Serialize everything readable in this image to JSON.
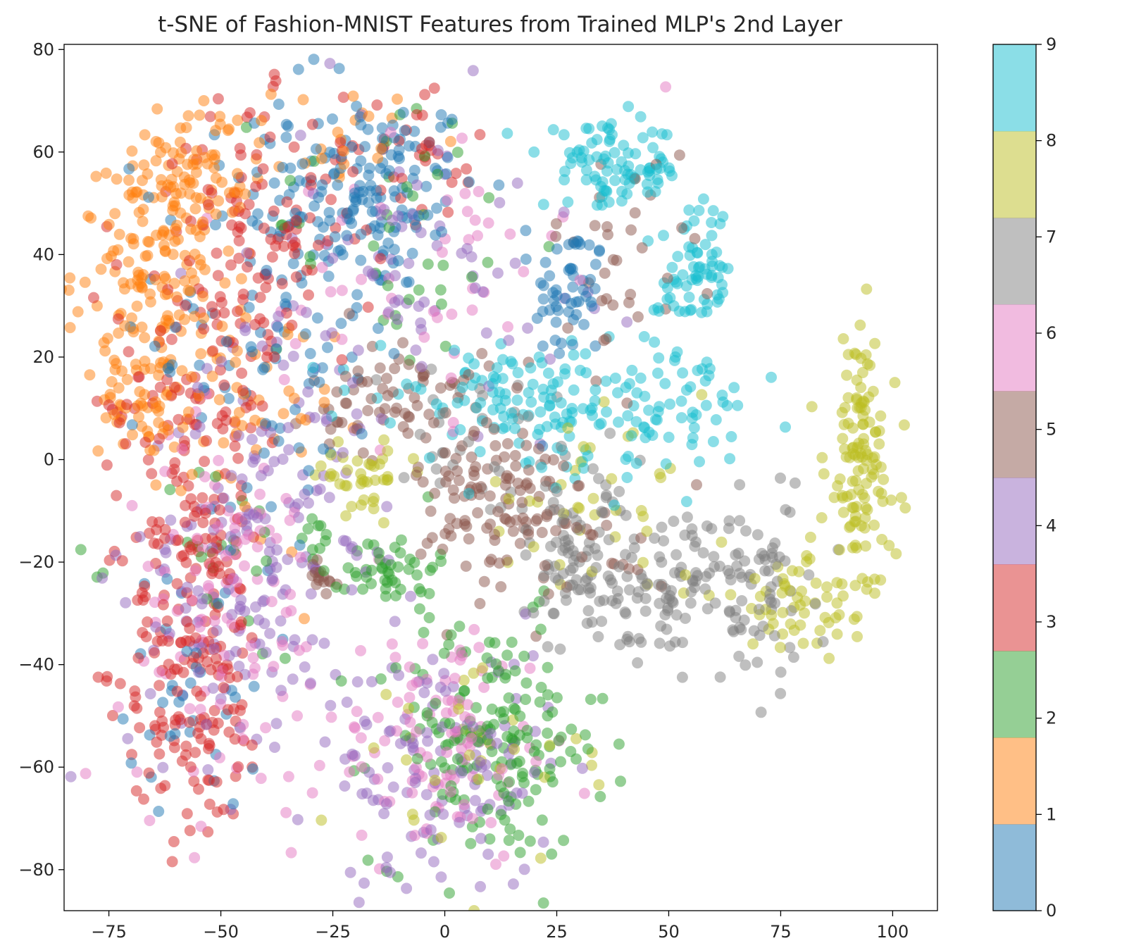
{
  "chart_data": {
    "type": "scatter",
    "title": "t-SNE of Fashion-MNIST Features from Trained MLP's 2nd Layer",
    "xlabel": "",
    "ylabel": "",
    "xlim": [
      -85,
      110
    ],
    "ylim": [
      -88,
      81
    ],
    "x_ticks": [
      -75,
      -50,
      -25,
      0,
      25,
      50,
      75,
      100
    ],
    "y_ticks": [
      -80,
      -60,
      -40,
      -20,
      0,
      20,
      40,
      60,
      80
    ],
    "x_tick_labels": [
      "−75",
      "−50",
      "−25",
      "0",
      "25",
      "50",
      "75",
      "100"
    ],
    "y_tick_labels": [
      "−80",
      "−60",
      "−40",
      "−20",
      "0",
      "20",
      "40",
      "60",
      "80"
    ],
    "grid": false,
    "marker_alpha": 0.5,
    "colormap": "tab10",
    "colorbar": {
      "min": 0,
      "max": 9,
      "ticks": [
        0,
        1,
        2,
        3,
        4,
        5,
        6,
        7,
        8,
        9
      ],
      "tick_labels": [
        "0",
        "1",
        "2",
        "3",
        "4",
        "5",
        "6",
        "7",
        "8",
        "9"
      ],
      "colors": [
        "#1f77b4",
        "#ff7f0e",
        "#2ca02c",
        "#d62728",
        "#9467bd",
        "#8c564b",
        "#e377c2",
        "#7f7f7f",
        "#bcbd22",
        "#17becf"
      ]
    },
    "clusters": [
      {
        "label": 0,
        "cx": -18,
        "cy": 52,
        "sx": 13,
        "sy": 10,
        "n": 160
      },
      {
        "label": 0,
        "cx": 28,
        "cy": 32,
        "sx": 4,
        "sy": 7,
        "n": 55
      },
      {
        "label": 0,
        "cx": -40,
        "cy": 25,
        "sx": 12,
        "sy": 22,
        "n": 100
      },
      {
        "label": 0,
        "cx": -55,
        "cy": -45,
        "sx": 8,
        "sy": 12,
        "n": 35
      },
      {
        "label": 1,
        "cx": -63,
        "cy": 38,
        "sx": 10,
        "sy": 12,
        "n": 170
      },
      {
        "label": 1,
        "cx": -67,
        "cy": 13,
        "sx": 5,
        "sy": 6,
        "n": 60
      },
      {
        "label": 1,
        "cx": -55,
        "cy": 58,
        "sx": 6,
        "sy": 6,
        "n": 50
      },
      {
        "label": 1,
        "cx": -22,
        "cy": 63,
        "sx": 8,
        "sy": 5,
        "n": 22
      },
      {
        "label": 1,
        "cx": -45,
        "cy": 5,
        "sx": 10,
        "sy": 12,
        "n": 45
      },
      {
        "label": 2,
        "cx": 10,
        "cy": -55,
        "sx": 13,
        "sy": 12,
        "n": 170
      },
      {
        "label": 2,
        "cx": -12,
        "cy": -21,
        "sx": 5,
        "sy": 4,
        "n": 45
      },
      {
        "label": 2,
        "cx": -28,
        "cy": -15,
        "sx": 2,
        "sy": 2,
        "n": 10
      },
      {
        "label": 2,
        "cx": -10,
        "cy": 45,
        "sx": 15,
        "sy": 15,
        "n": 40
      },
      {
        "label": 2,
        "cx": -50,
        "cy": -20,
        "sx": 10,
        "sy": 10,
        "n": 25
      },
      {
        "label": 3,
        "cx": -56,
        "cy": -40,
        "sx": 8,
        "sy": 18,
        "n": 170
      },
      {
        "label": 3,
        "cx": -55,
        "cy": 10,
        "sx": 10,
        "sy": 22,
        "n": 150
      },
      {
        "label": 3,
        "cx": -40,
        "cy": 45,
        "sx": 10,
        "sy": 12,
        "n": 90
      },
      {
        "label": 3,
        "cx": -10,
        "cy": 58,
        "sx": 10,
        "sy": 8,
        "n": 40
      },
      {
        "label": 4,
        "cx": -45,
        "cy": -25,
        "sx": 13,
        "sy": 20,
        "n": 130
      },
      {
        "label": 4,
        "cx": 0,
        "cy": -60,
        "sx": 12,
        "sy": 12,
        "n": 120
      },
      {
        "label": 4,
        "cx": -5,
        "cy": 40,
        "sx": 18,
        "sy": 15,
        "n": 70
      },
      {
        "label": 4,
        "cx": -35,
        "cy": 0,
        "sx": 10,
        "sy": 15,
        "n": 60
      },
      {
        "label": 5,
        "cx": 10,
        "cy": -8,
        "sx": 8,
        "sy": 10,
        "n": 90
      },
      {
        "label": 5,
        "cx": -10,
        "cy": 12,
        "sx": 10,
        "sy": 6,
        "n": 70
      },
      {
        "label": 5,
        "cx": 40,
        "cy": 40,
        "sx": 8,
        "sy": 10,
        "n": 35
      },
      {
        "label": 5,
        "cx": 27,
        "cy": -13,
        "sx": 12,
        "sy": 7,
        "n": 40
      },
      {
        "label": 5,
        "cx": -28,
        "cy": -23,
        "sx": 2,
        "sy": 2,
        "n": 15
      },
      {
        "label": 6,
        "cx": -48,
        "cy": -30,
        "sx": 12,
        "sy": 18,
        "n": 110
      },
      {
        "label": 6,
        "cx": 0,
        "cy": -55,
        "sx": 12,
        "sy": 12,
        "n": 100
      },
      {
        "label": 6,
        "cx": -5,
        "cy": 40,
        "sx": 15,
        "sy": 15,
        "n": 50
      },
      {
        "label": 7,
        "cx": 30,
        "cy": -20,
        "sx": 10,
        "sy": 9,
        "n": 100
      },
      {
        "label": 7,
        "cx": 50,
        "cy": -25,
        "sx": 8,
        "sy": 7,
        "n": 80
      },
      {
        "label": 7,
        "cx": 70,
        "cy": -25,
        "sx": 8,
        "sy": 10,
        "n": 70
      },
      {
        "label": 7,
        "cx": 5,
        "cy": 5,
        "sx": 10,
        "sy": 6,
        "n": 30
      },
      {
        "label": 8,
        "cx": 93,
        "cy": 0,
        "sx": 4,
        "sy": 13,
        "n": 120
      },
      {
        "label": 8,
        "cx": 80,
        "cy": -28,
        "sx": 10,
        "sy": 5,
        "n": 60
      },
      {
        "label": 8,
        "cx": -18,
        "cy": -3,
        "sx": 5,
        "sy": 3,
        "n": 40
      },
      {
        "label": 8,
        "cx": 30,
        "cy": -10,
        "sx": 15,
        "sy": 8,
        "n": 40
      },
      {
        "label": 8,
        "cx": 10,
        "cy": -60,
        "sx": 15,
        "sy": 10,
        "n": 35
      },
      {
        "label": 9,
        "cx": 38,
        "cy": 57,
        "sx": 8,
        "sy": 4,
        "n": 90
      },
      {
        "label": 9,
        "cx": 56,
        "cy": 36,
        "sx": 4,
        "sy": 7,
        "n": 70
      },
      {
        "label": 9,
        "cx": 15,
        "cy": 13,
        "sx": 15,
        "sy": 4,
        "n": 90
      },
      {
        "label": 9,
        "cx": 50,
        "cy": 10,
        "sx": 10,
        "sy": 7,
        "n": 60
      },
      {
        "label": 9,
        "cx": 30,
        "cy": 5,
        "sx": 10,
        "sy": 5,
        "n": 40
      }
    ]
  }
}
